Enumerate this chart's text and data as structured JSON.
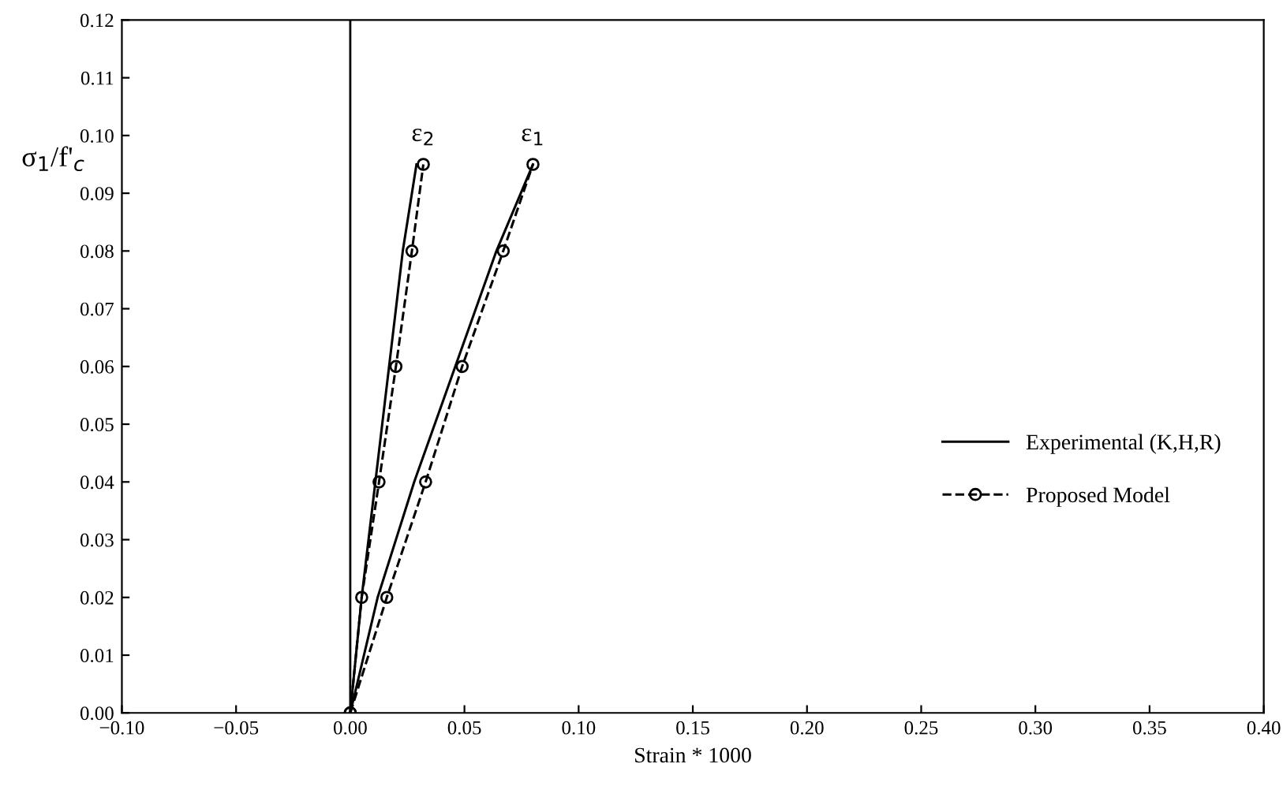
{
  "chart_data": {
    "type": "line",
    "xlabel": "Strain * 1000",
    "ylabel": "σ$_{1}$/f'$_{c}$",
    "xlim": [
      -0.1,
      0.4
    ],
    "ylim": [
      0,
      0.12
    ],
    "xticks": [
      {
        "value": -0.1,
        "label": "−0.10"
      },
      {
        "value": -0.05,
        "label": "−0.05"
      },
      {
        "value": 0,
        "label": "0.00"
      },
      {
        "value": 0.05,
        "label": "0.05"
      },
      {
        "value": 0.1,
        "label": "0.10"
      },
      {
        "value": 0.15,
        "label": "0.15"
      },
      {
        "value": 0.2,
        "label": "0.20"
      },
      {
        "value": 0.25,
        "label": "0.25"
      },
      {
        "value": 0.3,
        "label": "0.30"
      },
      {
        "value": 0.35,
        "label": "0.35"
      },
      {
        "value": 0.4,
        "label": "0.40"
      }
    ],
    "yticks": [
      {
        "value": 0,
        "label": "0.00"
      },
      {
        "value": 0.01,
        "label": "0.01"
      },
      {
        "value": 0.02,
        "label": "0.02"
      },
      {
        "value": 0.03,
        "label": "0.03"
      },
      {
        "value": 0.04,
        "label": "0.04"
      },
      {
        "value": 0.05,
        "label": "0.05"
      },
      {
        "value": 0.06,
        "label": "0.06"
      },
      {
        "value": 0.07,
        "label": "0.07"
      },
      {
        "value": 0.08,
        "label": "0.08"
      },
      {
        "value": 0.09,
        "label": "0.09"
      },
      {
        "value": 0.1,
        "label": "0.10"
      },
      {
        "value": 0.11,
        "label": "0.11"
      },
      {
        "value": 0.12,
        "label": "0.12"
      }
    ],
    "series": [
      {
        "name": "Experimental (K,H,R)",
        "color": "#000000",
        "line_style": "solid",
        "marker": "none",
        "x": [
          0,
          0.012,
          0.028,
          0.046,
          0.064,
          0.08
        ],
        "values": [
          0,
          0.02,
          0.04,
          0.06,
          0.08,
          0.095
        ]
      },
      {
        "name": "Proposed Model",
        "color": "#000000",
        "line_style": "dashed",
        "marker": "circle",
        "x": [
          0,
          0.016,
          0.033,
          0.049,
          0.067,
          0.08
        ],
        "values": [
          0,
          0.02,
          0.04,
          0.06,
          0.08,
          0.095
        ]
      },
      {
        "color": "#000000",
        "line_style": "solid",
        "marker": "none",
        "x": [
          0,
          0.005,
          0.011,
          0.017,
          0.023,
          0.029
        ],
        "values": [
          0,
          0.02,
          0.04,
          0.06,
          0.08,
          0.095
        ]
      },
      {
        "color": "#000000",
        "line_style": "dashed",
        "marker": "circle",
        "x": [
          0,
          0.005,
          0.0126,
          0.02,
          0.027,
          0.032
        ],
        "values": [
          0,
          0.02,
          0.04,
          0.06,
          0.08,
          0.095
        ]
      }
    ],
    "ref_lines": [
      {
        "axis": "x",
        "value": 0,
        "color": "#000000",
        "line_style": "solid"
      }
    ],
    "annotations": [
      {
        "text": "ε$_{1}$",
        "x": 0.08,
        "y": 0.095
      },
      {
        "text": "ε$_{2}$",
        "x": 0.032,
        "y": 0.095
      }
    ],
    "legend": "right",
    "grid": false
  }
}
